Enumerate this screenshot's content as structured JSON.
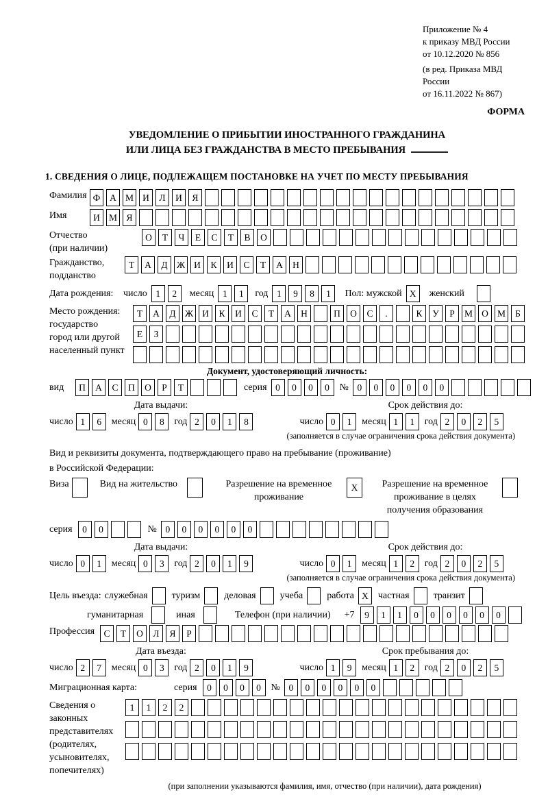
{
  "doc": {
    "annex": [
      "Приложение № 4",
      "к приказу МВД России",
      "от 10.12.2020 № 856"
    ],
    "annex_rev": [
      "(в ред. Приказа МВД России",
      "от 16.11.2022 № 867)"
    ],
    "forma": "ФОРМА",
    "title1": "УВЕДОМЛЕНИЕ О ПРИБЫТИИ ИНОСТРАННОГО ГРАЖДАНИНА",
    "title2": "ИЛИ ЛИЦА БЕЗ ГРАЖДАНСТВА В МЕСТО ПРЕБЫВАНИЯ",
    "section1": "1. СВЕДЕНИЯ О ЛИЦЕ, ПОДЛЕЖАЩЕМ ПОСТАНОВКЕ НА УЧЕТ ПО МЕСТУ ПРЕБЫВАНИЯ"
  },
  "person": {
    "surname_label": "Фамилия",
    "surname": {
      "v": "ФАМИЛИЯ",
      "n": 26
    },
    "name_label": "Имя",
    "name": {
      "v": "ИМЯ",
      "n": 26
    },
    "patronymic_label": "Отчество",
    "patronymic_label2": "(при наличии)",
    "patronymic": {
      "v": "ОТЧЕСТВО",
      "n": 23
    },
    "citizenship_label": "Гражданство,",
    "citizenship_label2": "подданство",
    "citizenship": {
      "v": "ТАДЖИКИСТАН",
      "n": 24
    },
    "birth_date_label": "Дата рождения:",
    "day_label": "число",
    "month_label": "месяц",
    "year_label": "год",
    "birth_day": {
      "v": "12",
      "n": 2
    },
    "birth_month": {
      "v": "11",
      "n": 2
    },
    "birth_year": {
      "v": "1981",
      "n": 4
    },
    "sex_label": "Пол: мужской",
    "sex_male": {
      "v": "X",
      "n": 1
    },
    "sex_female_label": "женский",
    "sex_female": {
      "v": "",
      "n": 1
    },
    "birthplace_label": "Место рождения:",
    "birthplace_label2": "государство",
    "birthplace_label3": "город или другой",
    "birthplace_label4": "населенный пункт",
    "birthplace_row1": {
      "v": "ТАДЖИКИСТАН ПОС. КУРМОМБ",
      "n": 24
    },
    "birthplace_row2": {
      "v": "ЕЗ",
      "n": 24
    },
    "birthplace_row3": {
      "v": "",
      "n": 24
    }
  },
  "identity_doc": {
    "heading": "Документ, удостоверяющий личность:",
    "kind_label": "вид",
    "kind": {
      "v": "ПАСПОРТ",
      "n": 10
    },
    "series_label": "серия",
    "series": {
      "v": "0000",
      "n": 4
    },
    "number_label": "№",
    "number": {
      "v": "000000",
      "n": 11
    },
    "day_label": "число",
    "month_label": "месяц",
    "year_label": "год",
    "issue_heading": "Дата выдачи:",
    "issue_day": {
      "v": "16",
      "n": 2
    },
    "issue_month": {
      "v": "08",
      "n": 2
    },
    "issue_year": {
      "v": "2018",
      "n": 4
    },
    "expiry_heading": "Срок действия до:",
    "expiry_day": {
      "v": "01",
      "n": 2
    },
    "expiry_month": {
      "v": "11",
      "n": 2
    },
    "expiry_year": {
      "v": "2025",
      "n": 4
    },
    "note": "(заполняется в случае ограничения срока действия документа)"
  },
  "residence_doc": {
    "intro1": "Вид и реквизиты документа, подтверждающего право на пребывание (проживание)",
    "intro2": "в Российской Федерации:",
    "visa_label": "Виза",
    "visa_box": {
      "v": "",
      "n": 1
    },
    "residence_permit_label": "Вид на жительство",
    "residence_permit_box": {
      "v": "",
      "n": 1
    },
    "rvp_label1": "Разрешение на временное",
    "rvp_label2": "проживание",
    "rvp_box": {
      "v": "X",
      "n": 1
    },
    "rvp_edu_label1": "Разрешение на временное",
    "rvp_edu_label2": "проживание в целях",
    "rvp_edu_label3": "получения образования",
    "rvp_edu_box": {
      "v": "",
      "n": 1
    },
    "series_label": "серия",
    "series": {
      "v": "00",
      "n": 4
    },
    "number_label": "№",
    "number": {
      "v": "000000",
      "n": 14
    },
    "day_label": "число",
    "month_label": "месяц",
    "year_label": "год",
    "issue_heading": "Дата выдачи:",
    "issue_day": {
      "v": "01",
      "n": 2
    },
    "issue_month": {
      "v": "03",
      "n": 2
    },
    "issue_year": {
      "v": "2019",
      "n": 4
    },
    "expiry_heading": "Срок действия до:",
    "expiry_day": {
      "v": "01",
      "n": 2
    },
    "expiry_month": {
      "v": "12",
      "n": 2
    },
    "expiry_year": {
      "v": "2025",
      "n": 4
    },
    "note": "(заполняется в случае ограничения срока действия документа)"
  },
  "visit": {
    "purpose_label": "Цель въезда:",
    "opt_official_label": "служебная",
    "opt_official": {
      "v": "",
      "n": 1
    },
    "opt_tourism_label": "туризм",
    "opt_tourism": {
      "v": "",
      "n": 1
    },
    "opt_business_label": "деловая",
    "opt_business": {
      "v": "",
      "n": 1
    },
    "opt_study_label": "учеба",
    "opt_study": {
      "v": "",
      "n": 1
    },
    "opt_work_label": "работа",
    "opt_work": {
      "v": "X",
      "n": 1
    },
    "opt_private_label": "частная",
    "opt_private": {
      "v": "",
      "n": 1
    },
    "opt_transit_label": "транзит",
    "opt_transit": {
      "v": "",
      "n": 1
    },
    "opt_humanitarian_label": "гуманитарная",
    "opt_humanitarian": {
      "v": "",
      "n": 1
    },
    "opt_other_label": "иная",
    "opt_other": {
      "v": "",
      "n": 1
    },
    "phone_label": "Телефон (при наличии)",
    "phone_prefix": "+7",
    "phone": {
      "v": "911000000",
      "n": 10
    },
    "profession_label": "Профессия",
    "profession": {
      "v": "СТОЛЯР",
      "n": 25
    },
    "day_label": "число",
    "month_label": "месяц",
    "year_label": "год",
    "entry_heading": "Дата въезда:",
    "entry_day": {
      "v": "27",
      "n": 2
    },
    "entry_month": {
      "v": "03",
      "n": 2
    },
    "entry_year": {
      "v": "2019",
      "n": 4
    },
    "stay_heading": "Срок пребывания до:",
    "stay_day": {
      "v": "19",
      "n": 2
    },
    "stay_month": {
      "v": "12",
      "n": 2
    },
    "stay_year": {
      "v": "2025",
      "n": 4
    },
    "migration_card_label": "Миграционная карта:",
    "mk_series_label": "серия",
    "mk_series": {
      "v": "0000",
      "n": 4
    },
    "mk_number_label": "№",
    "mk_number": {
      "v": "000000",
      "n": 11
    }
  },
  "representatives": {
    "label1": "Сведения о",
    "label2": "законных",
    "label3": "представителях",
    "label4": "(родителях,",
    "label5": "усыновителях,",
    "label6": "попечителях)",
    "row1": {
      "v": "1122",
      "n": 24
    },
    "row2": {
      "v": "",
      "n": 24
    },
    "row3": {
      "v": "",
      "n": 24
    },
    "note": "(при заполнении указываются фамилия, имя, отчество (при наличии), дата рождения)"
  }
}
